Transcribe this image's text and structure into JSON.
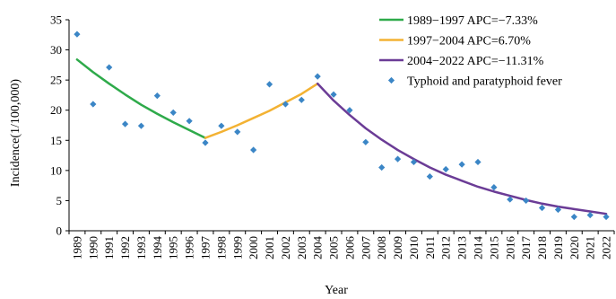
{
  "chart_data": {
    "type": "scatter",
    "xlabel": "Year",
    "ylabel": "Incidence(1/100,000)",
    "ylim": [
      0,
      35
    ],
    "yticks": [
      0,
      5,
      10,
      15,
      20,
      25,
      30,
      35
    ],
    "xlim": [
      1989,
      2022
    ],
    "x_tick_labels": [
      "1989",
      "1990",
      "1991",
      "1992",
      "1993",
      "1994",
      "1995",
      "1996",
      "1997",
      "1998",
      "1999",
      "2000",
      "2001",
      "2002",
      "2003",
      "2004",
      "2005",
      "2006",
      "2007",
      "2008",
      "2009",
      "2010",
      "2011",
      "2012",
      "2013",
      "2014",
      "2015",
      "2016",
      "2017",
      "2018",
      "2019",
      "2020",
      "2021",
      "2022"
    ],
    "grid": false,
    "legend_position": "top-right",
    "series": [
      {
        "name": "Typhoid and paratyphoid fever",
        "kind": "scatter",
        "color": "#3b86c6",
        "x": [
          1989,
          1990,
          1991,
          1992,
          1993,
          1994,
          1995,
          1996,
          1997,
          1998,
          1999,
          2000,
          2001,
          2002,
          2003,
          2004,
          2005,
          2006,
          2007,
          2008,
          2009,
          2010,
          2011,
          2012,
          2013,
          2014,
          2015,
          2016,
          2017,
          2018,
          2019,
          2020,
          2021,
          2022
        ],
        "y": [
          32.6,
          21.0,
          27.1,
          17.7,
          17.4,
          22.4,
          19.6,
          18.2,
          14.6,
          17.4,
          16.4,
          13.4,
          24.3,
          21.0,
          21.7,
          25.6,
          22.6,
          20.0,
          14.7,
          10.5,
          11.9,
          11.4,
          9.0,
          10.2,
          11.0,
          11.4,
          7.2,
          5.2,
          5.0,
          3.8,
          3.5,
          2.3,
          2.6,
          2.3
        ]
      },
      {
        "name": "1989−1997 APC=−7.33%",
        "kind": "line",
        "color": "#2eaa4a",
        "x": [
          1989,
          1990,
          1991,
          1992,
          1993,
          1994,
          1995,
          1996,
          1997
        ],
        "y": [
          28.4,
          26.3,
          24.4,
          22.6,
          20.9,
          19.4,
          18.0,
          16.7,
          15.4
        ]
      },
      {
        "name": "1997−2004 APC=6.70%",
        "kind": "line",
        "color": "#f3b233",
        "x": [
          1997,
          1998,
          1999,
          2000,
          2001,
          2002,
          2003,
          2004
        ],
        "y": [
          15.4,
          16.4,
          17.5,
          18.7,
          19.9,
          21.3,
          22.7,
          24.4
        ]
      },
      {
        "name": "2004−2022 APC=−11.31%",
        "kind": "line",
        "color": "#6b3c96",
        "x": [
          2004,
          2005,
          2006,
          2007,
          2008,
          2009,
          2010,
          2011,
          2012,
          2013,
          2014,
          2015,
          2016,
          2017,
          2018,
          2019,
          2020,
          2021,
          2022
        ],
        "y": [
          24.4,
          21.6,
          19.2,
          17.0,
          15.1,
          13.4,
          11.9,
          10.5,
          9.3,
          8.3,
          7.3,
          6.5,
          5.8,
          5.1,
          4.5,
          4.0,
          3.6,
          3.2,
          2.8
        ]
      }
    ],
    "legend": [
      {
        "label": "1989−1997 APC=−7.33%",
        "marker": "line",
        "color": "#2eaa4a"
      },
      {
        "label": "1997−2004 APC=6.70%",
        "marker": "line",
        "color": "#f3b233"
      },
      {
        "label": "2004−2022 APC=−11.31%",
        "marker": "line",
        "color": "#6b3c96"
      },
      {
        "label": "Typhoid and paratyphoid fever",
        "marker": "diamond",
        "color": "#3b86c6"
      }
    ]
  }
}
